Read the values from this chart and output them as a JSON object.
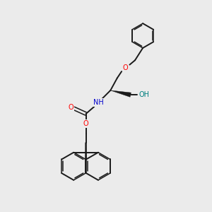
{
  "background_color": "#ebebeb",
  "bond_color": "#1a1a1a",
  "atom_colors": {
    "O": "#ff0000",
    "N": "#0000cc",
    "H_OH": "#008080",
    "C": "#1a1a1a"
  },
  "lw": 1.4,
  "lw_double": 1.1
}
